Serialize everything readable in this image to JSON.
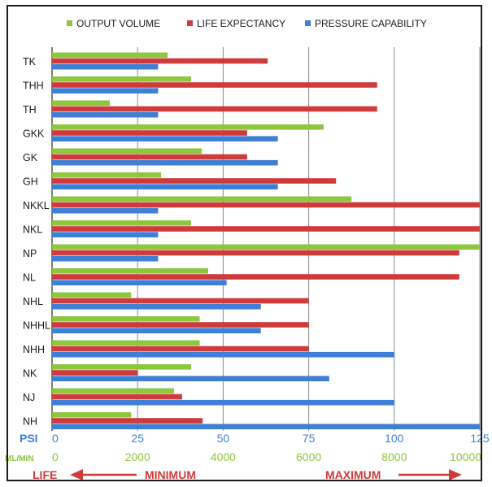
{
  "chart_data": {
    "type": "bar",
    "orientation": "horizontal",
    "legend_position": "top",
    "grid": true,
    "categories": [
      "TK",
      "THH",
      "TH",
      "GKK",
      "GK",
      "GH",
      "NKKL",
      "NKL",
      "NP",
      "NL",
      "NHL",
      "NHHL",
      "NHH",
      "NK",
      "NJ",
      "NH"
    ],
    "series": [
      {
        "name": "OUTPUT VOLUME",
        "color": "#8dc63f",
        "unit": "ML/MIN",
        "values": [
          2700,
          3250,
          1350,
          6350,
          3500,
          2550,
          7000,
          3250,
          10000,
          3650,
          1850,
          3450,
          3450,
          3250,
          2850,
          1850
        ]
      },
      {
        "name": "LIFE EXPECTANCY",
        "color": "#cf3a3a",
        "unit": "PSI-scale",
        "values": [
          63,
          95,
          95,
          57,
          57,
          83,
          125,
          125,
          119,
          119,
          75,
          75,
          75,
          25,
          38,
          44
        ]
      },
      {
        "name": "PRESSURE CAPABILITY",
        "color": "#3f7fd6",
        "unit": "PSI",
        "values": [
          31,
          31,
          31,
          66,
          66,
          66,
          31,
          31,
          31,
          51,
          61,
          61,
          100,
          81,
          100,
          125
        ]
      }
    ],
    "psi_axis": {
      "label": "PSI",
      "ticks": [
        "0",
        "25",
        "50",
        "75",
        "100",
        "125"
      ],
      "range": [
        0,
        125
      ],
      "color": "#3f7fd6"
    },
    "mlmin_axis": {
      "label": "ML/MIN",
      "ticks": [
        "0",
        "2000",
        "4000",
        "6000",
        "8000",
        "10000"
      ],
      "range": [
        0,
        10000
      ],
      "color": "#8dc63f"
    },
    "life_axis": {
      "label": "LIFE",
      "minimum": "MINIMUM",
      "maximum": "MAXIMUM",
      "color": "#cf3a3a"
    }
  }
}
